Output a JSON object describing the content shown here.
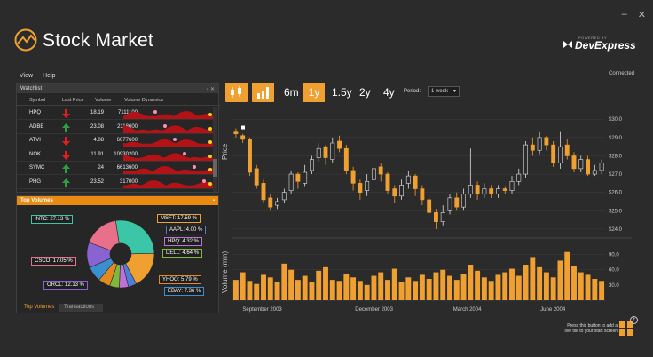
{
  "app": {
    "title": "Stock Market",
    "brand_small": "POWERED BY",
    "brand": "DevExpress",
    "status": "Connected"
  },
  "window_controls": {
    "minimize": "–",
    "close": "✕"
  },
  "menu": [
    "View",
    "Help"
  ],
  "watchlist": {
    "title": "Watchlist",
    "columns": [
      "Symbol",
      "Last Price",
      "Volume",
      "Volume Dynamics"
    ],
    "rows": [
      {
        "symbol": "HPQ",
        "price": "18.19",
        "volume": "7111100",
        "dir": "down"
      },
      {
        "symbol": "ADBE",
        "price": "23.08",
        "volume": "2118600",
        "dir": "up"
      },
      {
        "symbol": "ATVI",
        "price": "4.08",
        "volume": "6077600",
        "dir": "down"
      },
      {
        "symbol": "NOK",
        "price": "11.91",
        "volume": "10930200",
        "dir": "down"
      },
      {
        "symbol": "SYMC",
        "price": "24",
        "volume": "6613600",
        "dir": "up"
      },
      {
        "symbol": "PHG",
        "price": "23.52",
        "volume": "317000",
        "dir": "up"
      }
    ]
  },
  "top_volumes": {
    "title": "Top Volumes",
    "tabs": [
      "Top Volumes",
      "Transactions"
    ],
    "slices": [
      {
        "label": "INTC: 27.13 %",
        "value": 27.13,
        "color": "#3cc6a8"
      },
      {
        "label": "MSFT: 17.59 %",
        "value": 17.59,
        "color": "#f0a030"
      },
      {
        "label": "AAPL: 4.00 %",
        "value": 4.0,
        "color": "#4d7fd9"
      },
      {
        "label": "HPQ: 4.32 %",
        "value": 4.32,
        "color": "#c070d8"
      },
      {
        "label": "DELL: 4.64 %",
        "value": 4.64,
        "color": "#7fb83a"
      },
      {
        "label": "YHOO: 5.79 %",
        "value": 5.79,
        "color": "#e08a20"
      },
      {
        "label": "EBAY: 7.36 %",
        "value": 7.36,
        "color": "#3a8fd0"
      },
      {
        "label": "ORCL: 12.13 %",
        "value": 12.13,
        "color": "#8a63d2"
      },
      {
        "label": "CSCO: 17.05 %",
        "value": 17.05,
        "color": "#e8708a"
      }
    ]
  },
  "toolbar": {
    "ranges": [
      "6m",
      "1y",
      "1.5y",
      "2y",
      "4y"
    ],
    "selected": "1y",
    "period_label": "Period:",
    "period_value": "1 week"
  },
  "chart_data": {
    "type": "candlestick",
    "price_ticks": [
      "$30.0",
      "$29.0",
      "$28.0",
      "$27.0",
      "$26.0",
      "$25.0",
      "$24.0"
    ],
    "price_range": [
      23.8,
      30.4
    ],
    "volume_ticks": [
      "90.0",
      "60.0",
      "30.0"
    ],
    "volume_range": [
      0,
      105
    ],
    "ylabel_price": "Price",
    "ylabel_volume": "Volume (mln)",
    "x_ticks": [
      "September 2003",
      "December 2003",
      "March 2004",
      "June 2004"
    ],
    "candles": [
      [
        29.3,
        29.2,
        29.5,
        29.0
      ],
      [
        29.1,
        28.9,
        29.2,
        28.7
      ],
      [
        28.9,
        27.1,
        29.0,
        26.9
      ],
      [
        27.3,
        26.4,
        27.5,
        26.2
      ],
      [
        26.5,
        25.6,
        26.7,
        25.4
      ],
      [
        25.7,
        25.2,
        25.9,
        25.0
      ],
      [
        25.3,
        25.5,
        25.7,
        25.1
      ],
      [
        25.6,
        26.0,
        26.2,
        25.4
      ],
      [
        26.1,
        27.0,
        27.2,
        25.9
      ],
      [
        27.0,
        26.6,
        27.1,
        26.2
      ],
      [
        26.5,
        27.1,
        27.5,
        26.3
      ],
      [
        27.2,
        27.8,
        28.0,
        27.0
      ],
      [
        27.9,
        28.4,
        28.7,
        27.7
      ],
      [
        28.5,
        27.9,
        28.6,
        27.5
      ],
      [
        27.8,
        28.7,
        29.0,
        27.6
      ],
      [
        28.8,
        28.4,
        29.1,
        28.2
      ],
      [
        28.4,
        27.2,
        28.6,
        27.0
      ],
      [
        27.2,
        26.5,
        27.4,
        26.1
      ],
      [
        26.5,
        26.0,
        26.7,
        25.6
      ],
      [
        26.1,
        26.6,
        27.0,
        25.8
      ],
      [
        26.7,
        27.3,
        27.6,
        26.5
      ],
      [
        27.4,
        27.0,
        27.6,
        26.6
      ],
      [
        27.0,
        26.1,
        27.1,
        25.9
      ],
      [
        26.2,
        25.8,
        26.4,
        25.4
      ],
      [
        25.8,
        26.4,
        26.7,
        25.6
      ],
      [
        26.5,
        26.9,
        27.2,
        26.2
      ],
      [
        26.9,
        26.2,
        27.0,
        25.8
      ],
      [
        26.2,
        25.6,
        26.4,
        25.3
      ],
      [
        25.6,
        24.9,
        25.8,
        24.6
      ],
      [
        24.9,
        24.4,
        25.1,
        24.0
      ],
      [
        24.4,
        24.9,
        25.3,
        24.2
      ],
      [
        25.0,
        25.7,
        25.9,
        24.8
      ],
      [
        25.7,
        25.2,
        26.0,
        25.0
      ],
      [
        25.2,
        25.9,
        26.2,
        25.0
      ],
      [
        25.9,
        26.4,
        28.4,
        25.7
      ],
      [
        26.4,
        25.9,
        26.6,
        25.6
      ],
      [
        25.9,
        26.2,
        26.5,
        25.7
      ],
      [
        26.2,
        25.9,
        26.4,
        25.7
      ],
      [
        25.9,
        26.2,
        26.4,
        25.7
      ],
      [
        26.2,
        26.1,
        26.3,
        25.9
      ],
      [
        26.1,
        26.6,
        26.9,
        25.9
      ],
      [
        26.6,
        27.0,
        27.3,
        26.4
      ],
      [
        27.0,
        28.6,
        28.8,
        26.8
      ],
      [
        28.6,
        28.3,
        29.0,
        28.0
      ],
      [
        28.3,
        29.0,
        29.3,
        28.1
      ],
      [
        29.0,
        28.6,
        29.1,
        28.3
      ],
      [
        28.6,
        27.6,
        28.8,
        27.4
      ],
      [
        27.6,
        28.5,
        29.3,
        27.3
      ],
      [
        28.6,
        28.0,
        28.9,
        27.8
      ],
      [
        28.0,
        27.3,
        28.2,
        27.1
      ],
      [
        27.3,
        27.8,
        28.0,
        27.1
      ],
      [
        27.8,
        27.0,
        28.0,
        26.9
      ],
      [
        27.0,
        27.2,
        27.5,
        26.9
      ],
      [
        27.2,
        27.6,
        27.8,
        27.0
      ]
    ],
    "volumes": [
      40,
      55,
      38,
      32,
      50,
      45,
      35,
      72,
      60,
      40,
      48,
      36,
      58,
      65,
      40,
      38,
      52,
      45,
      38,
      30,
      48,
      55,
      40,
      62,
      35,
      45,
      38,
      50,
      42,
      55,
      60,
      48,
      40,
      52,
      70,
      58,
      45,
      38,
      50,
      55,
      62,
      48,
      70,
      85,
      65,
      55,
      45,
      78,
      95,
      68,
      55,
      50,
      42,
      38
    ]
  }
}
